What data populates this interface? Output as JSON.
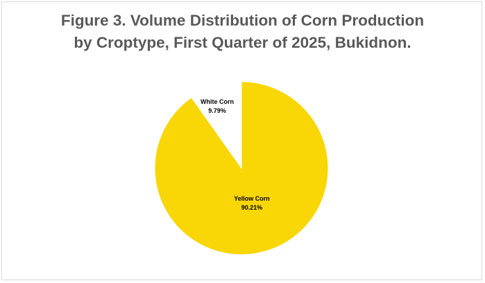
{
  "chart_data": {
    "type": "pie",
    "title_lines": [
      "Figure 3. Volume Distribution of Corn Production",
      "by Croptype, First Quarter of 2025, Bukidnon."
    ],
    "slices": [
      {
        "name": "White Corn",
        "percent_label": "9.79%",
        "value": 9.79,
        "color": "#ffffff"
      },
      {
        "name": "Yellow Corn",
        "percent_label": "90.21%",
        "value": 90.21,
        "color": "#f9d605"
      }
    ],
    "start_angle_deg": 0,
    "direction": "counter-clockwise"
  }
}
